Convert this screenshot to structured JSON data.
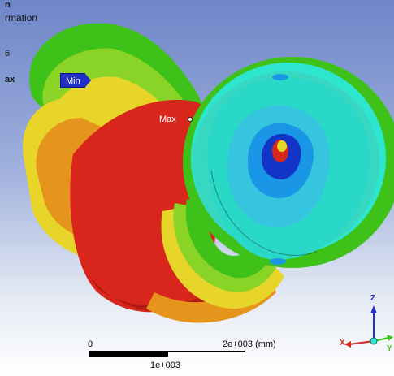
{
  "legend": {
    "line1": "n",
    "line2": "rmation",
    "line3": "6",
    "line4": "ax"
  },
  "markers": {
    "min": "Min",
    "max": "Max"
  },
  "scale_bar": {
    "start": "0",
    "end": "2e+003 (mm)",
    "mid": "1e+003"
  },
  "triad": {
    "x": "X",
    "y": "Y",
    "z": "Z"
  },
  "colors": {
    "max": "#d8261d",
    "min": "#1f2fc7",
    "green": "#3ec21a",
    "cyan": "#2ee6d0",
    "yellow": "#e8d52a",
    "orange": "#e5941c"
  }
}
